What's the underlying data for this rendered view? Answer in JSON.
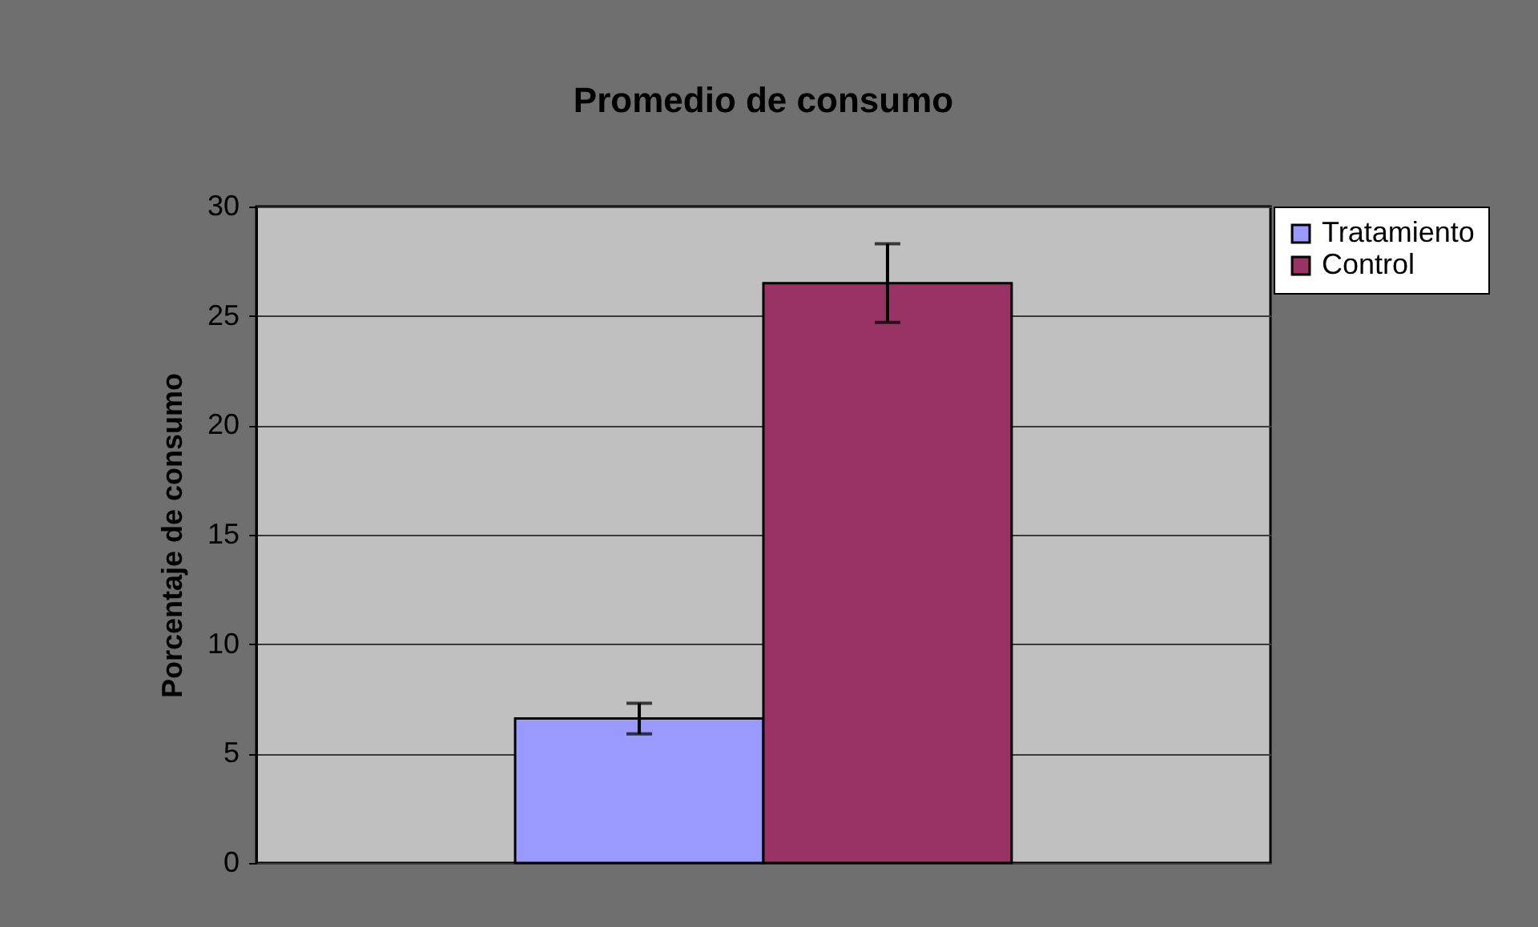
{
  "chart_data": {
    "type": "bar",
    "title": "Promedio de consumo",
    "ylabel": "Porcentaje de consumo",
    "categories": [
      null
    ],
    "series": [
      {
        "name": "Tratamiento",
        "color": "#9999ff",
        "values": [
          6.6
        ],
        "errors": [
          0.7
        ]
      },
      {
        "name": "Control",
        "color": "#993366",
        "values": [
          26.5
        ],
        "errors": [
          1.8
        ]
      }
    ],
    "ylim": [
      0,
      30
    ],
    "yticks": [
      0,
      5,
      10,
      15,
      20,
      25,
      30
    ],
    "grid": "y",
    "legend": "right"
  }
}
